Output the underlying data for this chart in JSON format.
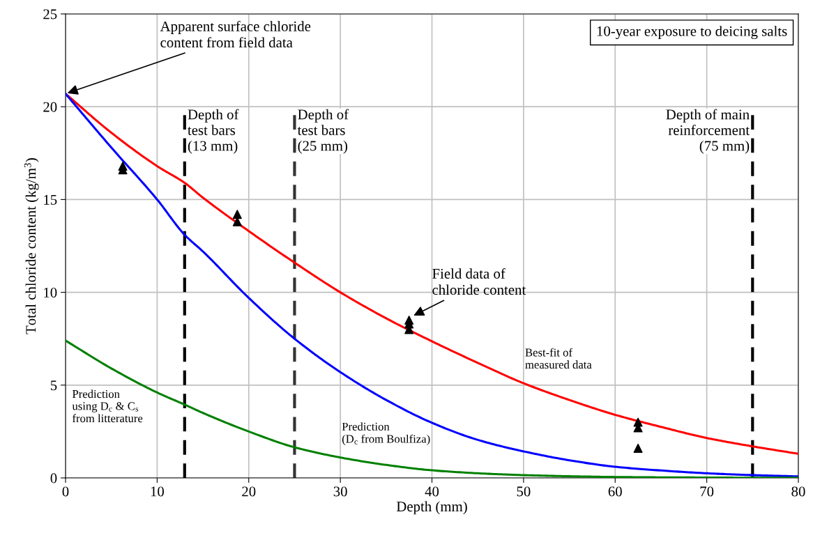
{
  "chart_data": {
    "type": "line",
    "xlabel": "Depth (mm)",
    "ylabel": "Total chloride content (kg/m$^{3}$)",
    "xlim": [
      0,
      80
    ],
    "xticks": [
      0,
      10,
      20,
      30,
      40,
      50,
      60,
      70,
      80
    ],
    "ylim": [
      0,
      25
    ],
    "yticks": [
      0,
      5,
      10,
      15,
      20,
      25
    ],
    "grid": true,
    "legend": false,
    "marker": "none",
    "line_style": "solid",
    "series": [
      {
        "color": "#ff0000",
        "x": [
          0,
          5,
          10,
          13,
          15,
          20,
          25,
          30,
          35,
          40,
          45,
          50,
          55,
          60,
          65,
          70,
          75,
          80
        ],
        "values": [
          20.7,
          18.6,
          16.8,
          15.9,
          15.1,
          13.3,
          11.6,
          10.0,
          8.6,
          7.36,
          6.2,
          5.1,
          4.2,
          3.4,
          2.75,
          2.15,
          1.7,
          1.3
        ]
      },
      {
        "color": "#0000ff",
        "x": [
          0,
          5,
          10,
          13,
          15,
          20,
          25,
          30,
          35,
          40,
          45,
          50,
          55,
          60,
          65,
          70,
          75,
          80
        ],
        "values": [
          20.7,
          17.8,
          15.0,
          13.1,
          12.2,
          9.7,
          7.5,
          5.7,
          4.2,
          2.97,
          2.05,
          1.43,
          0.95,
          0.6,
          0.4,
          0.25,
          0.15,
          0.08
        ]
      },
      {
        "color": "#008000",
        "x": [
          0,
          5,
          10,
          13,
          15,
          20,
          25,
          30,
          35,
          40,
          45,
          50,
          55,
          60,
          65,
          70,
          75,
          80
        ],
        "values": [
          7.4,
          5.9,
          4.6,
          3.95,
          3.5,
          2.5,
          1.65,
          1.1,
          0.7,
          0.41,
          0.25,
          0.15,
          0.09,
          0.05,
          0.03,
          0.02,
          0.01,
          0.01
        ]
      },
      {
        "type": "scatter",
        "color": "#000000",
        "marker": "triangle",
        "x": [
          6.25,
          6.25,
          18.75,
          18.75,
          37.5,
          37.5,
          37.5,
          62.5,
          62.5,
          62.5
        ],
        "values": [
          16.6,
          16.8,
          13.8,
          14.2,
          8.0,
          8.3,
          8.5,
          3.0,
          2.7,
          1.6
        ]
      }
    ],
    "ref_lines": [
      {
        "axis": "x",
        "value": 13,
        "label": "Depth of\ntest bars\n(13 mm)",
        "color": "#000000",
        "line_style": "dashed"
      },
      {
        "axis": "x",
        "value": 25,
        "label": "Depth of\ntest bars\n(25 mm)",
        "color": "#333333",
        "line_style": "dashed"
      },
      {
        "axis": "x",
        "value": 75,
        "label": "Depth of main\nreinforcement\n(75 mm)",
        "color": "#000000",
        "line_style": "dashed"
      }
    ],
    "annotations": [
      {
        "text": "Apparent surface chloride\ncontent from field data",
        "x": 0,
        "y": 20.7
      },
      {
        "text": "Field data of\nchloride content",
        "x": 37.8,
        "y": 8.7
      },
      "Best-fit of\nmeasured data",
      "Prediction\nusing D$_{c}$ & C$_{s}$\nfrom litterature",
      "Prediction\n(D$_{c}$ from Boulfiza)",
      "10-year exposure to deicing salts"
    ]
  }
}
